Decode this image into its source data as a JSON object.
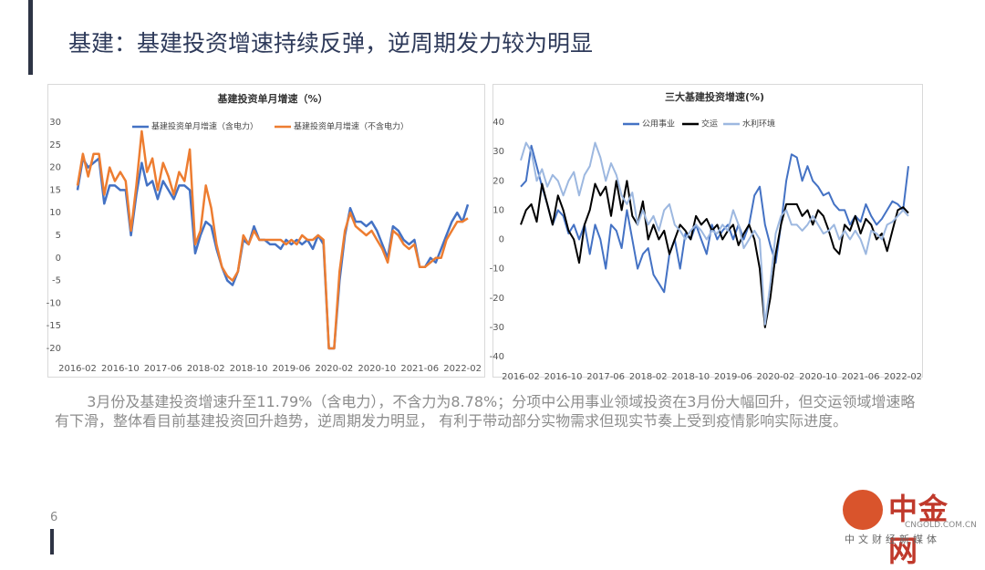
{
  "title": "基建：基建投资增速持续反弹，逆周期发力较为明显",
  "paragraph": "3月份及基建投资增速升至11.79%（含电力），不含力为8.78%；分项中公用事业领域投资在3月份大幅回升，但交运领域增速略有下滑，整体看目前基建投资回升趋势，逆周期发力明显， 有利于带动部分实物需求但现实节奏上受到疫情影响实际进度。",
  "page_number": "6",
  "logo": {
    "name": "中金网",
    "url": "CNGOLD.COM.CN",
    "slogan": "中文财经新媒体"
  },
  "chart_data": [
    {
      "type": "line",
      "title": "基建投资单月增速（%）",
      "categories": [
        "2016-02",
        null,
        null,
        null,
        null,
        null,
        null,
        null,
        "2016-10",
        null,
        null,
        null,
        null,
        null,
        null,
        null,
        "2017-06",
        null,
        null,
        null,
        null,
        null,
        null,
        null,
        "2018-02",
        null,
        null,
        null,
        null,
        null,
        null,
        null,
        "2018-10",
        null,
        null,
        null,
        null,
        null,
        null,
        null,
        "2019-06",
        null,
        null,
        null,
        null,
        null,
        null,
        null,
        "2020-02",
        null,
        null,
        null,
        null,
        null,
        null,
        null,
        "2020-10",
        null,
        null,
        null,
        null,
        null,
        null,
        null,
        "2021-06",
        null,
        null,
        null,
        null,
        null,
        null,
        null,
        "2022-02",
        null
      ],
      "series": [
        {
          "name": "基建投资单月增速（含电力）",
          "color": "#4472c4",
          "values": [
            15,
            22,
            20,
            21,
            22,
            12,
            16,
            16,
            15,
            15,
            5,
            14,
            21,
            16,
            17,
            13,
            17,
            15,
            13,
            16,
            16,
            15,
            1,
            5,
            8,
            7,
            2,
            -2,
            -5,
            -6,
            -3,
            4,
            3,
            7,
            4,
            4,
            3,
            3,
            2,
            4,
            3,
            4,
            3,
            4,
            2,
            5,
            3,
            -20,
            -20,
            -5,
            5,
            11,
            8,
            8,
            7,
            8,
            6,
            3,
            0,
            7,
            6,
            4,
            3,
            4,
            -2,
            -2,
            0,
            -1,
            2,
            5,
            8,
            10,
            8,
            11.79
          ]
        },
        {
          "name": "基建投资单月增速（不含电力）",
          "color": "#ed7d31",
          "values": [
            16,
            23,
            18,
            23,
            23,
            14,
            20,
            17,
            19,
            17,
            6,
            16,
            28,
            19,
            22,
            15,
            21,
            18,
            14,
            19,
            17,
            24,
            3,
            6,
            16,
            11,
            3,
            -2,
            -4,
            -5,
            -3,
            5,
            3,
            6,
            4,
            4,
            4,
            4,
            4,
            3,
            4,
            3,
            5,
            4,
            4,
            5,
            4,
            -20,
            -20,
            -3,
            6,
            10,
            7,
            6,
            5,
            6,
            4,
            2,
            -1,
            6,
            5,
            3,
            2,
            3,
            -2,
            -2,
            -1,
            0,
            0,
            4,
            6,
            8,
            8,
            8.78
          ]
        }
      ],
      "ylim": [
        -20,
        30
      ],
      "yticks": [
        -20,
        -15,
        -10,
        -5,
        0,
        5,
        10,
        15,
        20,
        25,
        30
      ],
      "grid": false
    },
    {
      "type": "line",
      "title": "三大基建投资增速(%)",
      "categories": [
        "2016-02",
        null,
        null,
        null,
        null,
        null,
        null,
        null,
        "2016-10",
        null,
        null,
        null,
        null,
        null,
        null,
        null,
        "2017-06",
        null,
        null,
        null,
        null,
        null,
        null,
        null,
        "2018-02",
        null,
        null,
        null,
        null,
        null,
        null,
        null,
        "2018-10",
        null,
        null,
        null,
        null,
        null,
        null,
        null,
        "2019-06",
        null,
        null,
        null,
        null,
        null,
        null,
        null,
        "2020-02",
        null,
        null,
        null,
        null,
        null,
        null,
        null,
        "2020-10",
        null,
        null,
        null,
        null,
        null,
        null,
        null,
        "2021-06",
        null,
        null,
        null,
        null,
        null,
        null,
        null,
        "2022-02",
        null
      ],
      "series": [
        {
          "name": "公用事业",
          "color": "#4472c4",
          "values": [
            18,
            20,
            32,
            25,
            18,
            12,
            5,
            10,
            8,
            2,
            5,
            0,
            5,
            -5,
            5,
            0,
            -10,
            5,
            3,
            -3,
            10,
            0,
            -10,
            -5,
            -3,
            -12,
            -15,
            -18,
            -5,
            0,
            -10,
            2,
            0,
            5,
            0,
            -5,
            5,
            0,
            3,
            5,
            0,
            5,
            0,
            5,
            15,
            18,
            5,
            -2,
            -8,
            5,
            20,
            29,
            28,
            20,
            25,
            20,
            18,
            15,
            16,
            12,
            10,
            10,
            5,
            8,
            6,
            12,
            8,
            5,
            7,
            10,
            13,
            12,
            10,
            25
          ]
        },
        {
          "name": "交运",
          "color": "#000000",
          "values": [
            5,
            10,
            12,
            6,
            19,
            12,
            5,
            15,
            10,
            3,
            0,
            -8,
            5,
            10,
            19,
            15,
            18,
            8,
            20,
            10,
            20,
            8,
            5,
            13,
            0,
            5,
            0,
            3,
            -5,
            0,
            5,
            3,
            0,
            8,
            5,
            7,
            3,
            5,
            0,
            3,
            5,
            -2,
            2,
            5,
            0,
            -10,
            -30,
            -20,
            -5,
            5,
            12,
            12,
            12,
            8,
            10,
            5,
            10,
            8,
            3,
            -3,
            -5,
            5,
            3,
            8,
            2,
            7,
            5,
            0,
            2,
            -4,
            3,
            10,
            11,
            9
          ]
        },
        {
          "name": "水利环境",
          "color": "#9db8e0",
          "values": [
            27,
            33,
            30,
            20,
            24,
            18,
            22,
            20,
            15,
            20,
            23,
            15,
            22,
            25,
            33,
            28,
            20,
            26,
            22,
            15,
            12,
            16,
            5,
            10,
            5,
            8,
            3,
            10,
            12,
            5,
            3,
            0,
            3,
            5,
            3,
            0,
            3,
            2,
            5,
            3,
            10,
            5,
            -3,
            0,
            3,
            0,
            -29,
            -15,
            2,
            8,
            10,
            5,
            5,
            3,
            5,
            8,
            5,
            2,
            3,
            5,
            0,
            3,
            0,
            3,
            0,
            -5,
            3,
            2,
            0,
            5,
            6,
            8,
            10,
            8
          ]
        }
      ],
      "ylim": [
        -40,
        40
      ],
      "yticks": [
        -40,
        -30,
        -20,
        -10,
        0,
        10,
        20,
        30,
        40
      ],
      "grid": false
    }
  ]
}
